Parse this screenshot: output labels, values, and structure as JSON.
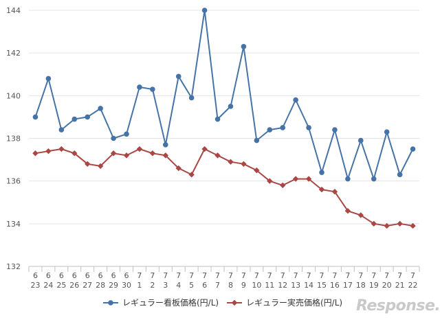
{
  "chart_data": {
    "type": "line",
    "title": "",
    "xlabel": "",
    "ylabel": "",
    "ylim": [
      132,
      144
    ],
    "y_ticks": [
      132,
      134,
      136,
      138,
      140,
      142,
      144
    ],
    "grid": "horizontal",
    "legend_position": "bottom",
    "categories": [
      {
        "month": "6",
        "day": "23"
      },
      {
        "month": "6",
        "day": "24"
      },
      {
        "month": "6",
        "day": "25"
      },
      {
        "month": "6",
        "day": "26"
      },
      {
        "month": "6",
        "day": "27"
      },
      {
        "month": "6",
        "day": "28"
      },
      {
        "month": "6",
        "day": "29"
      },
      {
        "month": "6",
        "day": "30"
      },
      {
        "month": "7",
        "day": "1"
      },
      {
        "month": "7",
        "day": "2"
      },
      {
        "month": "7",
        "day": "3"
      },
      {
        "month": "7",
        "day": "4"
      },
      {
        "month": "7",
        "day": "5"
      },
      {
        "month": "7",
        "day": "6"
      },
      {
        "month": "7",
        "day": "7"
      },
      {
        "month": "7",
        "day": "8"
      },
      {
        "month": "7",
        "day": "9"
      },
      {
        "month": "7",
        "day": "10"
      },
      {
        "month": "7",
        "day": "11"
      },
      {
        "month": "7",
        "day": "12"
      },
      {
        "month": "7",
        "day": "13"
      },
      {
        "month": "7",
        "day": "14"
      },
      {
        "month": "7",
        "day": "15"
      },
      {
        "month": "7",
        "day": "16"
      },
      {
        "month": "7",
        "day": "17"
      },
      {
        "month": "7",
        "day": "18"
      },
      {
        "month": "7",
        "day": "19"
      },
      {
        "month": "7",
        "day": "20"
      },
      {
        "month": "7",
        "day": "21"
      },
      {
        "month": "7",
        "day": "22"
      }
    ],
    "series": [
      {
        "name": "レギュラー看板価格(円/L)",
        "color": "#4573a7",
        "marker": "circle",
        "values": [
          139.0,
          140.8,
          138.4,
          138.9,
          139.0,
          139.4,
          138.0,
          138.2,
          140.4,
          140.3,
          137.7,
          140.9,
          139.9,
          144.0,
          138.9,
          139.5,
          142.3,
          137.9,
          138.4,
          138.5,
          139.8,
          138.5,
          136.4,
          138.4,
          136.1,
          137.9,
          136.1,
          138.3,
          136.3,
          137.5
        ]
      },
      {
        "name": "レギュラー実売価格(円/L)",
        "color": "#aa4643",
        "marker": "diamond",
        "values": [
          137.3,
          137.4,
          137.5,
          137.3,
          136.8,
          136.7,
          137.3,
          137.2,
          137.5,
          137.3,
          137.2,
          136.6,
          136.3,
          137.5,
          137.2,
          136.9,
          136.8,
          136.5,
          136.0,
          135.8,
          136.1,
          136.1,
          135.6,
          135.5,
          134.6,
          134.4,
          134.0,
          133.9,
          134.0,
          133.9
        ]
      }
    ]
  },
  "watermark": "Response."
}
